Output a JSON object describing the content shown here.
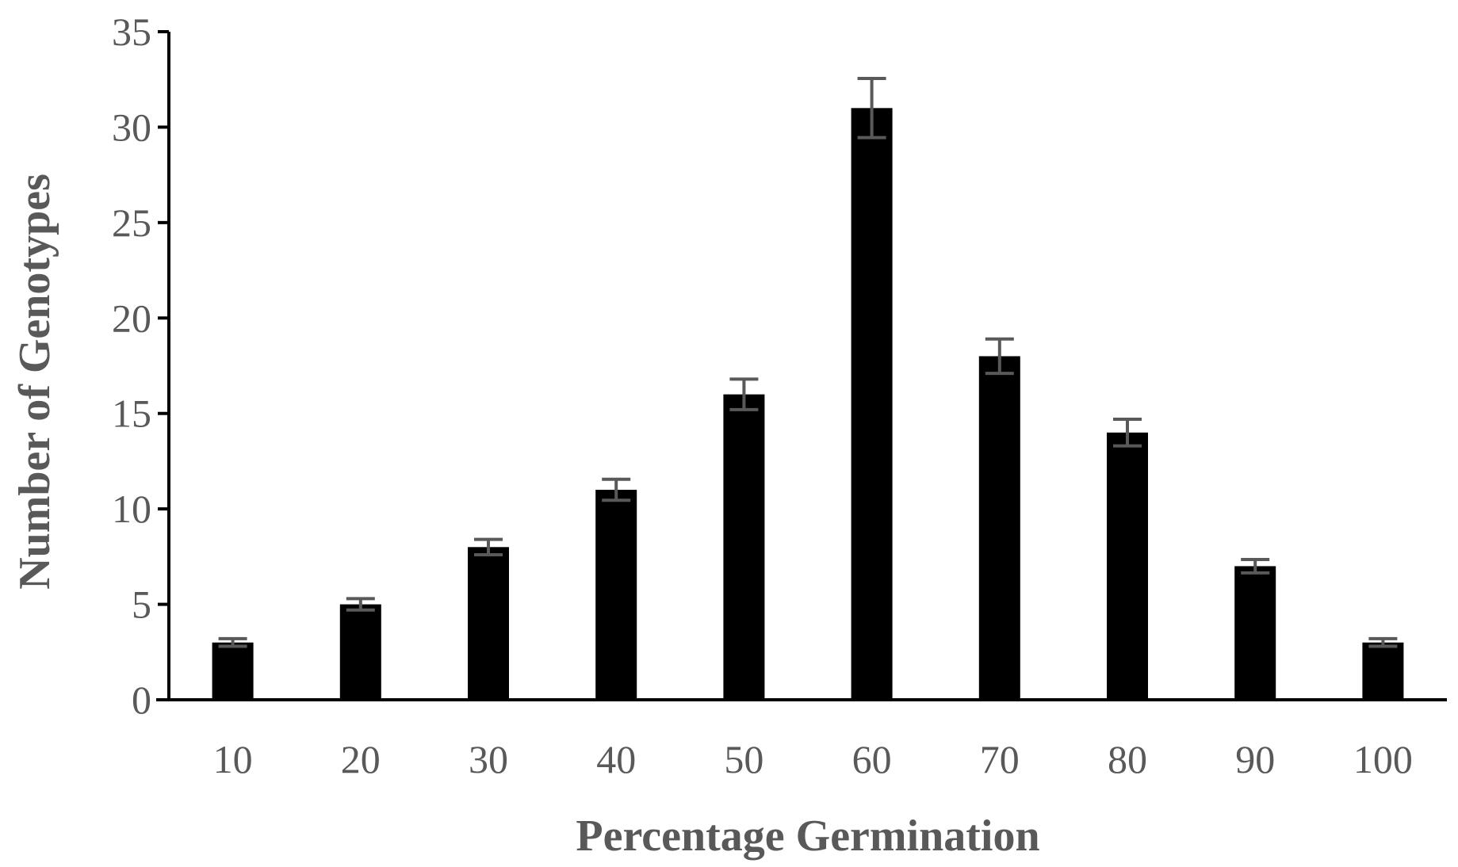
{
  "chart_data": {
    "type": "bar",
    "title": "",
    "xlabel": "Percentage Germination",
    "ylabel": "Number of Genotypes",
    "categories": [
      "10",
      "20",
      "30",
      "40",
      "50",
      "60",
      "70",
      "80",
      "90",
      "100"
    ],
    "values": [
      3,
      5,
      8,
      11,
      16,
      31,
      18,
      14,
      7,
      3
    ],
    "error": [
      0.2,
      0.3,
      0.4,
      0.55,
      0.8,
      1.55,
      0.9,
      0.7,
      0.35,
      0.2
    ],
    "ylim": [
      0,
      35
    ],
    "yticks": [
      0,
      5,
      10,
      15,
      20,
      25,
      30,
      35
    ],
    "grid": false,
    "legend": "none",
    "colors": {
      "bar": "#000000",
      "error_bar": "#595959",
      "axis": "#000000",
      "text": "#595959"
    }
  }
}
